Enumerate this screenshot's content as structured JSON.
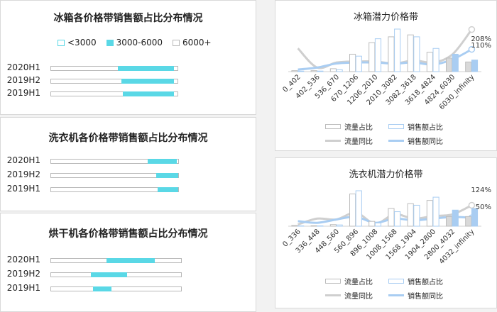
{
  "colors": {
    "cyan": "#5ad8e6",
    "cyan_border": "#5ad8e6",
    "grey_line": "#cfcfcf",
    "blue_line": "#a9cdf2",
    "bar_border": "#a9cdf2",
    "grey_fill": "#d9d9d9",
    "blue_fill": "#a9cdf2"
  },
  "chart_data": [
    {
      "type": "bar",
      "title": "冰箱各价格带销售额占比分布情况",
      "legend": [
        "<3000",
        "3000-6000",
        "6000+"
      ],
      "categories": [
        "2020H1",
        "2019H2",
        "2019H1"
      ],
      "series": [
        {
          "name": "<3000",
          "values": [
            0.52,
            0.55,
            0.56
          ]
        },
        {
          "name": "3000-6000",
          "values": [
            0.44,
            0.41,
            0.4
          ]
        },
        {
          "name": "6000+",
          "values": [
            0.04,
            0.04,
            0.04
          ]
        }
      ]
    },
    {
      "type": "bar",
      "title": "洗衣机各价格带销售额占比分布情况",
      "categories": [
        "2020H1",
        "2019H2",
        "2019H1"
      ],
      "series": [
        {
          "name": "<3000",
          "values": [
            0.75,
            0.82,
            0.83
          ]
        },
        {
          "name": "3000-6000",
          "values": [
            0.23,
            0.17,
            0.16
          ]
        },
        {
          "name": "6000+",
          "values": [
            0.02,
            0.01,
            0.01
          ]
        }
      ]
    },
    {
      "type": "bar",
      "title": "烘干机各价格带销售额占比分布情况",
      "categories": [
        "2020H1",
        "2019H2",
        "2019H1"
      ],
      "series": [
        {
          "name": "<3000",
          "values": [
            0.42,
            0.3,
            0.32
          ]
        },
        {
          "name": "3000-6000",
          "values": [
            0.37,
            0.28,
            0.14
          ]
        },
        {
          "name": "6000+",
          "values": [
            0.21,
            0.42,
            0.54
          ]
        }
      ]
    },
    {
      "type": "bar",
      "title": "冰箱潜力价格带",
      "categories": [
        "0_402",
        "402_536",
        "536_670",
        "670_1206",
        "1206_2010",
        "2010_3082",
        "3082_3618",
        "3618_4824",
        "4824_6030",
        "6030_infinity"
      ],
      "legend": [
        "流量占比",
        "销售额占比",
        "流量同比",
        "销售额同比"
      ],
      "series": [
        {
          "name": "流量占比",
          "type": "bar",
          "values": [
            0.5,
            0.5,
            1.5,
            9,
            15,
            18,
            19,
            10,
            7,
            5
          ]
        },
        {
          "name": "销售额占比",
          "type": "bar",
          "values": [
            0.3,
            0.3,
            1,
            8,
            17,
            22,
            18,
            12,
            9,
            6
          ]
        },
        {
          "name": "流量同比",
          "type": "line",
          "values": [
            115,
            20,
            45,
            50,
            50,
            40,
            55,
            45,
            85,
            208
          ]
        },
        {
          "name": "销售额同比",
          "type": "line",
          "values": [
            10,
            20,
            40,
            45,
            45,
            40,
            45,
            35,
            60,
            110
          ]
        }
      ],
      "annotations": [
        "208%",
        "110%"
      ]
    },
    {
      "type": "bar",
      "title": "洗衣机潜力价格带",
      "categories": [
        "0_336",
        "336_448",
        "448_560",
        "560_896",
        "896_1008",
        "1008_1568",
        "1568_1904",
        "1904_2800",
        "2800_4032",
        "4032_infinity"
      ],
      "legend": [
        "流量占比",
        "销售额占比",
        "流量同比",
        "销售额同比"
      ],
      "series": [
        {
          "name": "流量占比",
          "type": "bar",
          "values": [
            0.5,
            0.3,
            1,
            20,
            3,
            11,
            14,
            16,
            6,
            6
          ]
        },
        {
          "name": "销售额占比",
          "type": "bar",
          "values": [
            0.2,
            0.2,
            0.8,
            22,
            2,
            9,
            13,
            18,
            10,
            11
          ]
        },
        {
          "name": "流量同比",
          "type": "line",
          "values": [
            10,
            45,
            40,
            80,
            15,
            70,
            45,
            60,
            70,
            124
          ]
        },
        {
          "name": "销售额同比",
          "type": "line",
          "values": [
            30,
            20,
            40,
            55,
            20,
            45,
            35,
            45,
            55,
            50
          ]
        }
      ],
      "annotations": [
        "124%",
        "50%"
      ]
    }
  ]
}
